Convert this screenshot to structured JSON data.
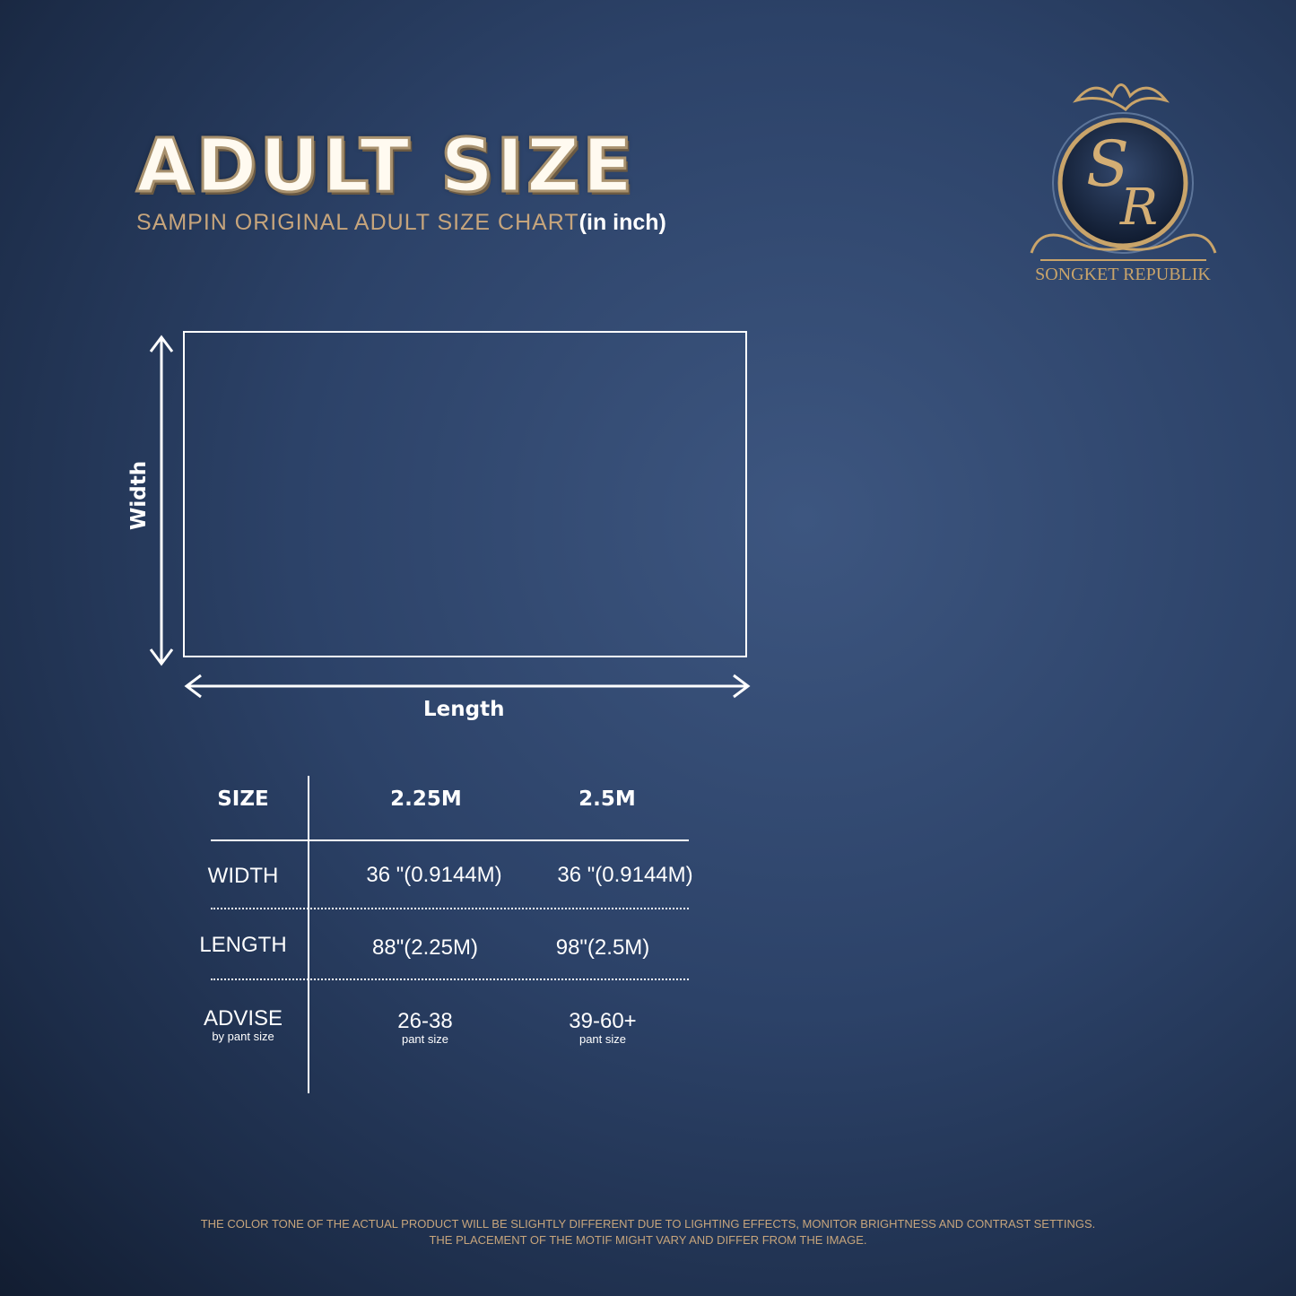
{
  "header": {
    "title": "ADULT SIZE",
    "subtitle": "SAMPIN ORIGINAL ADULT SIZE CHART",
    "subtitle_unit": "(in inch)"
  },
  "logo": {
    "brand": "SONGKET REPUBLIK",
    "monogram": "SR",
    "gold": "#c9a46a"
  },
  "diagram": {
    "width_label": "Width",
    "length_label": "Length"
  },
  "table": {
    "headers": [
      "SIZE",
      "2.25M",
      "2.5M"
    ],
    "rows": [
      {
        "label": "WIDTH",
        "sub": "",
        "values": [
          "36 \"(0.9144M)",
          "36 \"(0.9144M)"
        ],
        "subs": [
          "",
          ""
        ]
      },
      {
        "label": "LENGTH",
        "sub": "",
        "values": [
          "88\"(2.25M)",
          "98\"(2.5M)"
        ],
        "subs": [
          "",
          ""
        ]
      },
      {
        "label": "ADVISE",
        "sub": "by pant size",
        "values": [
          "26-38",
          "39-60+"
        ],
        "subs": [
          "pant size",
          "pant size"
        ]
      }
    ]
  },
  "footer": {
    "line1": "THE COLOR TONE OF THE ACTUAL PRODUCT WILL BE SLIGHTLY DIFFERENT DUE TO LIGHTING EFFECTS, MONITOR BRIGHTNESS AND CONTRAST SETTINGS.",
    "line2": "THE PLACEMENT OF THE MOTIF MIGHT VARY AND DIFFER FROM THE IMAGE."
  }
}
